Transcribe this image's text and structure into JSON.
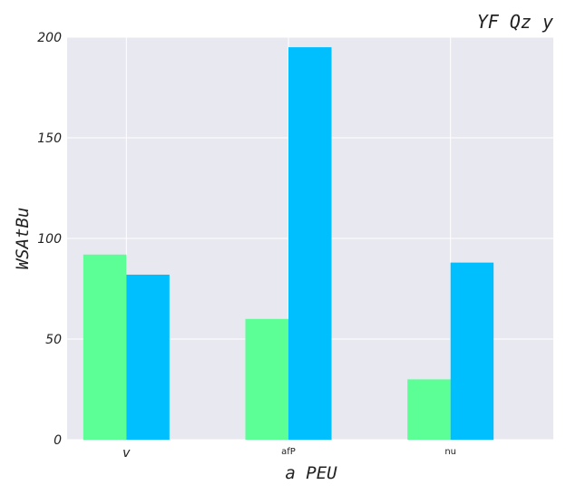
{
  "chart_data": {
    "type": "bar",
    "title": "YF Qz y",
    "xlabel": "a PEU",
    "ylabel": "WSAtBu",
    "categories": [
      "v",
      "afP",
      "nu"
    ],
    "series": [
      {
        "values": [
          92,
          60,
          30
        ],
        "color": "#5cff95"
      },
      {
        "values": [
          82,
          195,
          88
        ],
        "color": "#00bfff"
      }
    ],
    "ylim": [
      0,
      200
    ],
    "yticks": [
      "0",
      "50",
      "100",
      "150",
      "200"
    ],
    "grid": true,
    "background": "#e8e8f0"
  }
}
